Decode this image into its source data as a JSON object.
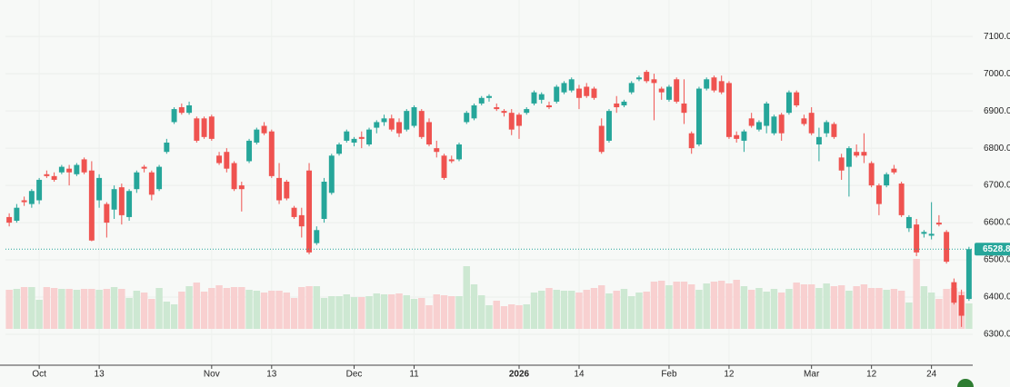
{
  "chart_data": {
    "type": "candlestick",
    "up_color": "#26a69a",
    "down_color": "#ef5350",
    "volume_up_color": "#cde8d2",
    "volume_down_color": "#f8d0d0",
    "grid": true,
    "ylim": [
      6222,
      7198
    ],
    "yticks": [
      {
        "value": 6300,
        "label": "6300.00"
      },
      {
        "value": 6400,
        "label": "6400.00"
      },
      {
        "value": 6500,
        "label": "6500.00"
      },
      {
        "value": 6600,
        "label": "6600.00"
      },
      {
        "value": 6700,
        "label": "6700.00"
      },
      {
        "value": 6800,
        "label": "6800.00"
      },
      {
        "value": 6900,
        "label": "6900.00"
      },
      {
        "value": 7000,
        "label": "7000.00"
      },
      {
        "value": 7100,
        "label": "7100.00"
      }
    ],
    "categories": [
      null,
      null,
      null,
      null,
      "Oct",
      null,
      null,
      null,
      null,
      null,
      null,
      null,
      "13",
      null,
      null,
      null,
      null,
      null,
      null,
      null,
      null,
      null,
      null,
      null,
      null,
      null,
      null,
      "Nov",
      null,
      null,
      null,
      null,
      null,
      null,
      null,
      "13",
      null,
      null,
      null,
      null,
      null,
      null,
      null,
      null,
      null,
      null,
      "Dec",
      null,
      null,
      null,
      null,
      null,
      null,
      null,
      "11",
      null,
      null,
      null,
      null,
      null,
      null,
      null,
      null,
      null,
      null,
      null,
      null,
      null,
      "2026",
      null,
      null,
      null,
      null,
      null,
      null,
      null,
      "14",
      null,
      null,
      null,
      null,
      null,
      null,
      null,
      null,
      null,
      null,
      null,
      "Feb",
      null,
      null,
      null,
      null,
      null,
      null,
      null,
      "12",
      null,
      null,
      null,
      null,
      null,
      null,
      null,
      null,
      null,
      null,
      "Mar",
      null,
      null,
      null,
      null,
      null,
      null,
      null,
      "12",
      null,
      null,
      null,
      null,
      null,
      null,
      null,
      "24",
      null,
      null,
      null,
      null,
      null
    ],
    "ohlc": [
      [
        6615,
        6625,
        6590,
        6600
      ],
      [
        6605,
        6650,
        6600,
        6640
      ],
      [
        6660,
        6670,
        6645,
        6655
      ],
      [
        6650,
        6690,
        6640,
        6685
      ],
      [
        6660,
        6720,
        6650,
        6715
      ],
      [
        6730,
        6740,
        6720,
        6725
      ],
      [
        6725,
        6735,
        6710,
        6715
      ],
      [
        6735,
        6755,
        6730,
        6750
      ],
      [
        6745,
        6755,
        6700,
        6735
      ],
      [
        6730,
        6760,
        6725,
        6755
      ],
      [
        6770,
        6775,
        6730,
        6735
      ],
      [
        6740,
        6765,
        6550,
        6552
      ],
      [
        6660,
        6730,
        6640,
        6720
      ],
      [
        6650,
        6655,
        6560,
        6600
      ],
      [
        6635,
        6700,
        6610,
        6690
      ],
      [
        6695,
        6705,
        6595,
        6620
      ],
      [
        6615,
        6690,
        6605,
        6685
      ],
      [
        6690,
        6740,
        6680,
        6735
      ],
      [
        6750,
        6755,
        6735,
        6745
      ],
      [
        6735,
        6740,
        6660,
        6675
      ],
      [
        6690,
        6755,
        6685,
        6750
      ],
      [
        6790,
        6825,
        6785,
        6815
      ],
      [
        6870,
        6910,
        6865,
        6905
      ],
      [
        6910,
        6920,
        6890,
        6895
      ],
      [
        6895,
        6925,
        6890,
        6915
      ],
      [
        6880,
        6885,
        6815,
        6820
      ],
      [
        6880,
        6885,
        6825,
        6830
      ],
      [
        6885,
        6890,
        6820,
        6825
      ],
      [
        6780,
        6790,
        6755,
        6760
      ],
      [
        6790,
        6800,
        6735,
        6745
      ],
      [
        6760,
        6765,
        6685,
        6690
      ],
      [
        6700,
        6710,
        6630,
        6690
      ],
      [
        6765,
        6825,
        6760,
        6820
      ],
      [
        6815,
        6855,
        6810,
        6850
      ],
      [
        6860,
        6870,
        6835,
        6840
      ],
      [
        6845,
        6850,
        6720,
        6725
      ],
      [
        6720,
        6760,
        6650,
        6660
      ],
      [
        6710,
        6715,
        6660,
        6665
      ],
      [
        6640,
        6645,
        6610,
        6615
      ],
      [
        6620,
        6640,
        6560,
        6590
      ],
      [
        6740,
        6760,
        6515,
        6520
      ],
      [
        6545,
        6590,
        6540,
        6580
      ],
      [
        6610,
        6720,
        6600,
        6710
      ],
      [
        6680,
        6785,
        6675,
        6780
      ],
      [
        6785,
        6815,
        6780,
        6810
      ],
      [
        6820,
        6850,
        6815,
        6845
      ],
      [
        6815,
        6830,
        6805,
        6825
      ],
      [
        6830,
        6845,
        6800,
        6825
      ],
      [
        6810,
        6855,
        6805,
        6850
      ],
      [
        6855,
        6875,
        6840,
        6870
      ],
      [
        6870,
        6890,
        6860,
        6880
      ],
      [
        6880,
        6890,
        6845,
        6850
      ],
      [
        6870,
        6880,
        6830,
        6840
      ],
      [
        6850,
        6905,
        6845,
        6900
      ],
      [
        6860,
        6915,
        6855,
        6910
      ],
      [
        6900,
        6905,
        6825,
        6830
      ],
      [
        6870,
        6880,
        6805,
        6810
      ],
      [
        6800,
        6820,
        6775,
        6790
      ],
      [
        6780,
        6785,
        6715,
        6720
      ],
      [
        6770,
        6780,
        6760,
        6765
      ],
      [
        6770,
        6815,
        6765,
        6810
      ],
      [
        6870,
        6900,
        6865,
        6895
      ],
      [
        6880,
        6920,
        6875,
        6915
      ],
      [
        6920,
        6940,
        6915,
        6935
      ],
      [
        6935,
        6945,
        6925,
        6940
      ],
      [
        6910,
        6920,
        6900,
        6905
      ],
      [
        6900,
        6905,
        6885,
        6895
      ],
      [
        6895,
        6905,
        6835,
        6850
      ],
      [
        6890,
        6895,
        6825,
        6860
      ],
      [
        6895,
        6910,
        6890,
        6905
      ],
      [
        6920,
        6955,
        6915,
        6950
      ],
      [
        6930,
        6950,
        6920,
        6945
      ],
      [
        6915,
        6925,
        6905,
        6910
      ],
      [
        6925,
        6970,
        6920,
        6965
      ],
      [
        6950,
        6980,
        6945,
        6975
      ],
      [
        6955,
        6990,
        6950,
        6985
      ],
      [
        6960,
        6970,
        6905,
        6935
      ],
      [
        6965,
        6975,
        6935,
        6940
      ],
      [
        6960,
        6965,
        6930,
        6935
      ],
      [
        6860,
        6880,
        6785,
        6790
      ],
      [
        6820,
        6905,
        6815,
        6900
      ],
      [
        6920,
        6940,
        6895,
        6910
      ],
      [
        6915,
        6930,
        6910,
        6925
      ],
      [
        6950,
        6980,
        6945,
        6975
      ],
      [
        6985,
        6995,
        6980,
        6990
      ],
      [
        7005,
        7010,
        6975,
        6980
      ],
      [
        6985,
        7000,
        6875,
        6975
      ],
      [
        6960,
        6965,
        6930,
        6950
      ],
      [
        6930,
        6970,
        6925,
        6965
      ],
      [
        6985,
        6990,
        6920,
        6925
      ],
      [
        6920,
        6985,
        6865,
        6895
      ],
      [
        6840,
        6845,
        6785,
        6800
      ],
      [
        6810,
        6965,
        6805,
        6960
      ],
      [
        6960,
        6990,
        6955,
        6985
      ],
      [
        6990,
        6995,
        6950,
        6955
      ],
      [
        6980,
        6995,
        6945,
        6950
      ],
      [
        6975,
        6980,
        6825,
        6830
      ],
      [
        6835,
        6845,
        6815,
        6825
      ],
      [
        6820,
        6850,
        6790,
        6845
      ],
      [
        6880,
        6895,
        6855,
        6860
      ],
      [
        6850,
        6875,
        6845,
        6870
      ],
      [
        6860,
        6925,
        6840,
        6920
      ],
      [
        6840,
        6890,
        6835,
        6885
      ],
      [
        6890,
        6895,
        6820,
        6840
      ],
      [
        6895,
        6955,
        6890,
        6950
      ],
      [
        6950,
        6955,
        6910,
        6915
      ],
      [
        6880,
        6890,
        6860,
        6865
      ],
      [
        6895,
        6910,
        6835,
        6840
      ],
      [
        6810,
        6855,
        6765,
        6830
      ],
      [
        6840,
        6875,
        6830,
        6870
      ],
      [
        6865,
        6870,
        6825,
        6830
      ],
      [
        6775,
        6785,
        6715,
        6740
      ],
      [
        6750,
        6805,
        6670,
        6800
      ],
      [
        6790,
        6810,
        6775,
        6780
      ],
      [
        6790,
        6840,
        6760,
        6780
      ],
      [
        6760,
        6765,
        6695,
        6700
      ],
      [
        6700,
        6705,
        6620,
        6650
      ],
      [
        6700,
        6735,
        6695,
        6730
      ],
      [
        6745,
        6755,
        6730,
        6735
      ],
      [
        6705,
        6710,
        6615,
        6620
      ],
      [
        6585,
        6620,
        6575,
        6615
      ],
      [
        6595,
        6610,
        6510,
        6520
      ],
      [
        6570,
        6580,
        6560,
        6575
      ],
      [
        6565,
        6655,
        6555,
        6570
      ],
      [
        6600,
        6620,
        6590,
        6595
      ],
      [
        6575,
        6580,
        6490,
        6495
      ],
      [
        6440,
        6450,
        6380,
        6385
      ],
      [
        6405,
        6420,
        6320,
        6350
      ],
      [
        6395,
        6535,
        6390,
        6528.81
      ]
    ],
    "volume": [
      43,
      44,
      46,
      46,
      32,
      46,
      45,
      44,
      44,
      43,
      44,
      44,
      43,
      44,
      46,
      44,
      34,
      42,
      40,
      33,
      45,
      30,
      27,
      41,
      47,
      51,
      41,
      45,
      48,
      45,
      46,
      46,
      43,
      42,
      40,
      42,
      42,
      40,
      34,
      46,
      47,
      47,
      34,
      36,
      36,
      38,
      35,
      35,
      36,
      39,
      38,
      38,
      39,
      37,
      33,
      34,
      26,
      38,
      37,
      36,
      36,
      69,
      49,
      37,
      26,
      31,
      25,
      27,
      26,
      27,
      40,
      42,
      45,
      43,
      42,
      42,
      40,
      43,
      45,
      48,
      39,
      42,
      44,
      36,
      40,
      41,
      52,
      53,
      48,
      52,
      52,
      49,
      43,
      50,
      52,
      53,
      50,
      54,
      47,
      43,
      45,
      41,
      44,
      40,
      44,
      51,
      49,
      49,
      45,
      50,
      47,
      48,
      42,
      47,
      49,
      45,
      45,
      43,
      44,
      42,
      29,
      77,
      47,
      40,
      33,
      44,
      45,
      41,
      28
    ]
  }
}
